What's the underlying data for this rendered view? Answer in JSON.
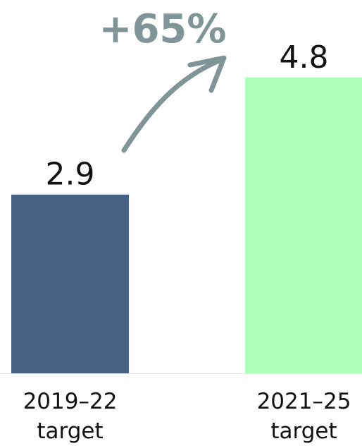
{
  "chart_data": {
    "type": "bar",
    "categories": [
      "2019–22 target",
      "2021–25 target"
    ],
    "values": [
      2.9,
      4.8
    ],
    "colors": [
      "#466384",
      "#adfdbb"
    ],
    "ylim": [
      0,
      6
    ],
    "annotation": "+65%"
  }
}
